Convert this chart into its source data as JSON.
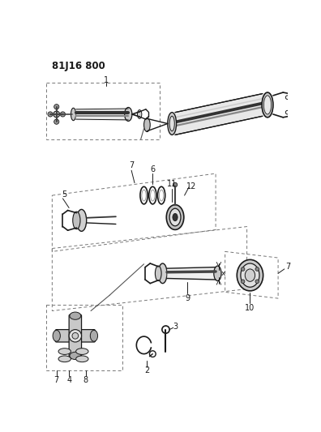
{
  "title": "81J16 800",
  "bg_color": "#ffffff",
  "line_color": "#1a1a1a",
  "gray_light": "#d8d8d8",
  "gray_mid": "#aaaaaa",
  "gray_dark": "#555555",
  "title_fontsize": 8.5
}
